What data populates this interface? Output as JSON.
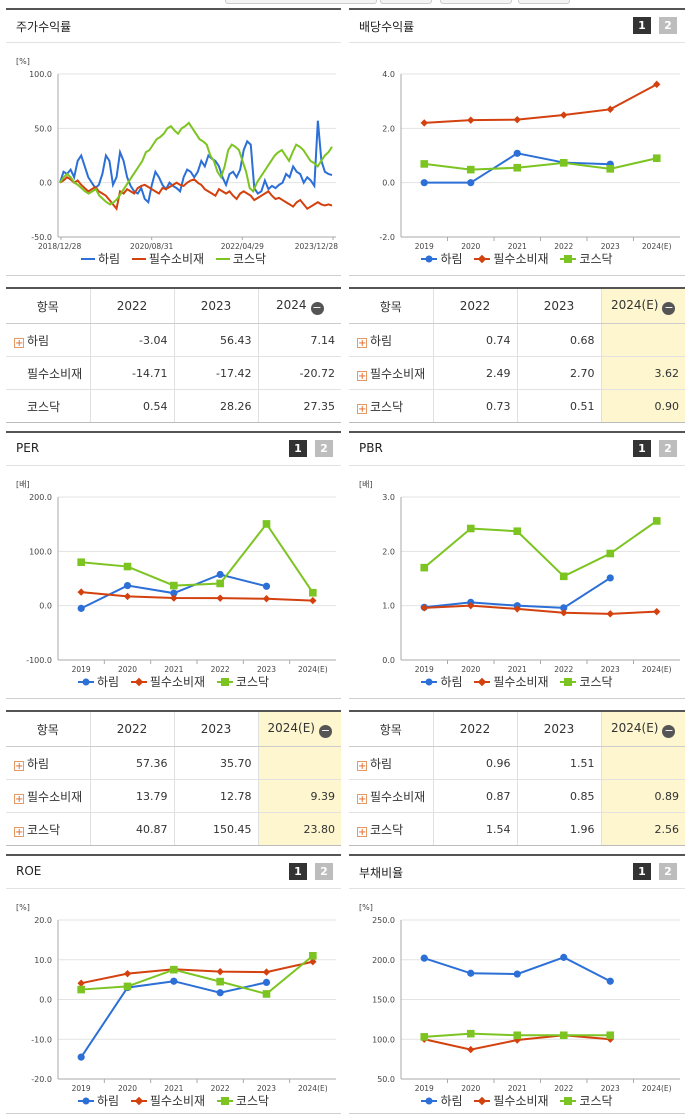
{
  "legend": {
    "harim": "하림",
    "consumer": "필수소비재",
    "kosdaq": "코스닥"
  },
  "colors": {
    "harim": "#2c6fd6",
    "consumer": "#d3410f",
    "kosdaq": "#7cc421"
  },
  "tabs": {
    "one": "1",
    "two": "2"
  },
  "panels": {
    "stock_return": {
      "title": "주가수익률",
      "unit": "[%]"
    },
    "dividend": {
      "title": "배당수익률",
      "unit": ""
    },
    "per": {
      "title": "PER",
      "unit": "[배]"
    },
    "pbr": {
      "title": "PBR",
      "unit": "[배]"
    },
    "roe": {
      "title": "ROE",
      "unit": "[%]"
    },
    "debt": {
      "title": "부채비율",
      "unit": "[%]"
    }
  },
  "chart_data": [
    {
      "id": "stock_return",
      "type": "line",
      "x_labels": [
        "2018/12/28",
        "2020/08/31",
        "2022/04/29",
        "2023/12/28"
      ],
      "ylim": [
        -50,
        100
      ],
      "yticks": [
        100.0,
        50.0,
        0.0,
        -50.0
      ],
      "series": [
        {
          "name": "하림",
          "values": [
            0,
            10,
            8,
            12,
            5,
            20,
            25,
            15,
            5,
            0,
            -5,
            -2,
            8,
            25,
            20,
            -2,
            5,
            28,
            20,
            5,
            -3,
            -8,
            -10,
            -5,
            -15,
            -18,
            -2,
            10,
            5,
            -2,
            -6,
            0,
            -3,
            -5,
            -8,
            5,
            12,
            10,
            5,
            10,
            20,
            15,
            25,
            22,
            20,
            15,
            5,
            -2,
            8,
            10,
            5,
            12,
            30,
            38,
            35,
            -5,
            -10,
            -8,
            2,
            -6,
            -3,
            -5,
            -2,
            0,
            8,
            5,
            15,
            10,
            8,
            0,
            5,
            2,
            -3,
            57,
            20,
            10,
            8,
            7
          ]
        },
        {
          "name": "필수소비재",
          "values": [
            0,
            2,
            5,
            3,
            0,
            2,
            -2,
            -5,
            -8,
            -6,
            -4,
            -8,
            -10,
            -12,
            -16,
            -20,
            -24,
            -8,
            -10,
            -6,
            -8,
            -10,
            -5,
            -3,
            -2,
            -4,
            -6,
            -8,
            -10,
            -5,
            -6,
            -4,
            -2,
            0,
            -2,
            -3,
            0,
            2,
            3,
            0,
            -2,
            -6,
            -8,
            -10,
            -12,
            -6,
            -8,
            -10,
            -8,
            -12,
            -15,
            -10,
            -8,
            -10,
            -12,
            -16,
            -14,
            -12,
            -10,
            -8,
            -12,
            -15,
            -14,
            -16,
            -18,
            -20,
            -22,
            -18,
            -16,
            -20,
            -24,
            -22,
            -20,
            -18,
            -20,
            -21,
            -20,
            -21
          ]
        },
        {
          "name": "코스닥",
          "values": [
            0,
            5,
            8,
            5,
            0,
            -2,
            -5,
            -8,
            -10,
            -8,
            -6,
            -12,
            -15,
            -18,
            -20,
            -18,
            -15,
            -10,
            -5,
            0,
            5,
            10,
            15,
            20,
            28,
            30,
            35,
            40,
            42,
            45,
            50,
            52,
            48,
            45,
            50,
            52,
            55,
            50,
            45,
            40,
            38,
            35,
            25,
            20,
            10,
            5,
            15,
            30,
            35,
            33,
            30,
            20,
            10,
            -5,
            -8,
            0,
            5,
            10,
            15,
            20,
            25,
            28,
            30,
            25,
            20,
            28,
            35,
            33,
            30,
            25,
            20,
            18,
            15,
            20,
            25,
            28,
            33
          ]
        }
      ]
    },
    {
      "id": "dividend",
      "type": "line",
      "categories": [
        "2019",
        "2020",
        "2021",
        "2022",
        "2023",
        "2024(E)"
      ],
      "ylim": [
        -2.0,
        4.0
      ],
      "yticks": [
        4.0,
        2.0,
        0.0,
        -2.0
      ],
      "series": [
        {
          "name": "하림",
          "values": [
            0.0,
            0.0,
            1.08,
            0.74,
            0.68,
            null
          ]
        },
        {
          "name": "필수소비재",
          "values": [
            2.2,
            2.3,
            2.32,
            2.49,
            2.7,
            3.62
          ]
        },
        {
          "name": "코스닥",
          "values": [
            0.69,
            0.48,
            0.55,
            0.73,
            0.51,
            0.9
          ]
        }
      ]
    },
    {
      "id": "per",
      "type": "line",
      "categories": [
        "2019",
        "2020",
        "2021",
        "2022",
        "2023",
        "2024(E)"
      ],
      "ylim": [
        -100.0,
        200.0
      ],
      "yticks": [
        200.0,
        100.0,
        0.0,
        -100.0
      ],
      "series": [
        {
          "name": "하림",
          "values": [
            -5,
            37,
            23,
            57.36,
            35.7,
            null
          ]
        },
        {
          "name": "필수소비재",
          "values": [
            25,
            17,
            14,
            13.79,
            12.78,
            9.39
          ]
        },
        {
          "name": "코스닥",
          "values": [
            80,
            72,
            37,
            40.87,
            150.45,
            23.8
          ]
        }
      ]
    },
    {
      "id": "pbr",
      "type": "line",
      "categories": [
        "2019",
        "2020",
        "2021",
        "2022",
        "2023",
        "2024(E)"
      ],
      "ylim": [
        0.0,
        3.0
      ],
      "yticks": [
        3.0,
        2.0,
        1.0,
        0.0
      ],
      "series": [
        {
          "name": "하림",
          "values": [
            0.97,
            1.06,
            1.0,
            0.96,
            1.51,
            null
          ]
        },
        {
          "name": "필수소비재",
          "values": [
            0.96,
            1.0,
            0.94,
            0.87,
            0.85,
            0.89
          ]
        },
        {
          "name": "코스닥",
          "values": [
            1.7,
            2.42,
            2.37,
            1.54,
            1.96,
            2.56
          ]
        }
      ]
    },
    {
      "id": "roe",
      "type": "line",
      "categories": [
        "2019",
        "2020",
        "2021",
        "2022",
        "2023",
        "2024(E)"
      ],
      "ylim": [
        -20.0,
        20.0
      ],
      "yticks": [
        20.0,
        10.0,
        0.0,
        -10.0,
        -20.0
      ],
      "series": [
        {
          "name": "하림",
          "values": [
            -14.5,
            3.0,
            4.6,
            1.7,
            4.3,
            null
          ]
        },
        {
          "name": "필수소비재",
          "values": [
            4.1,
            6.5,
            7.6,
            7.0,
            6.9,
            9.5
          ]
        },
        {
          "name": "코스닥",
          "values": [
            2.5,
            3.3,
            7.5,
            4.5,
            1.4,
            11.0
          ]
        }
      ]
    },
    {
      "id": "debt",
      "type": "line",
      "categories": [
        "2019",
        "2020",
        "2021",
        "2022",
        "2023",
        "2024(E)"
      ],
      "ylim": [
        50.0,
        250.0
      ],
      "yticks": [
        250.0,
        200.0,
        150.0,
        100.0,
        50.0
      ],
      "series": [
        {
          "name": "하림",
          "values": [
            202,
            183,
            182,
            203,
            173,
            null
          ]
        },
        {
          "name": "필수소비재",
          "values": [
            100,
            87,
            99,
            105,
            100,
            null
          ]
        },
        {
          "name": "코스닥",
          "values": [
            103,
            107,
            105,
            105,
            105,
            null
          ]
        }
      ]
    }
  ],
  "tables": {
    "stock_return": {
      "headers": [
        "항목",
        "2022",
        "2023",
        "2024"
      ],
      "rows": [
        {
          "label": "하림",
          "values": [
            "-3.04",
            "56.43",
            "7.14"
          ]
        },
        {
          "label": "필수소비재",
          "values": [
            "-14.71",
            "-17.42",
            "-20.72"
          ]
        },
        {
          "label": "코스닥",
          "values": [
            "0.54",
            "28.26",
            "27.35"
          ]
        }
      ]
    },
    "dividend": {
      "headers": [
        "항목",
        "2022",
        "2023",
        "2024(E)"
      ],
      "rows": [
        {
          "label": "하림",
          "values": [
            "0.74",
            "0.68",
            ""
          ]
        },
        {
          "label": "필수소비재",
          "values": [
            "2.49",
            "2.70",
            "3.62"
          ]
        },
        {
          "label": "코스닥",
          "values": [
            "0.73",
            "0.51",
            "0.90"
          ]
        }
      ]
    },
    "per": {
      "headers": [
        "항목",
        "2022",
        "2023",
        "2024(E)"
      ],
      "rows": [
        {
          "label": "하림",
          "values": [
            "57.36",
            "35.70",
            ""
          ]
        },
        {
          "label": "필수소비재",
          "values": [
            "13.79",
            "12.78",
            "9.39"
          ]
        },
        {
          "label": "코스닥",
          "values": [
            "40.87",
            "150.45",
            "23.80"
          ]
        }
      ]
    },
    "pbr": {
      "headers": [
        "항목",
        "2022",
        "2023",
        "2024(E)"
      ],
      "rows": [
        {
          "label": "하림",
          "values": [
            "0.96",
            "1.51",
            ""
          ]
        },
        {
          "label": "필수소비재",
          "values": [
            "0.87",
            "0.85",
            "0.89"
          ]
        },
        {
          "label": "코스닥",
          "values": [
            "1.54",
            "1.96",
            "2.56"
          ]
        }
      ]
    }
  }
}
